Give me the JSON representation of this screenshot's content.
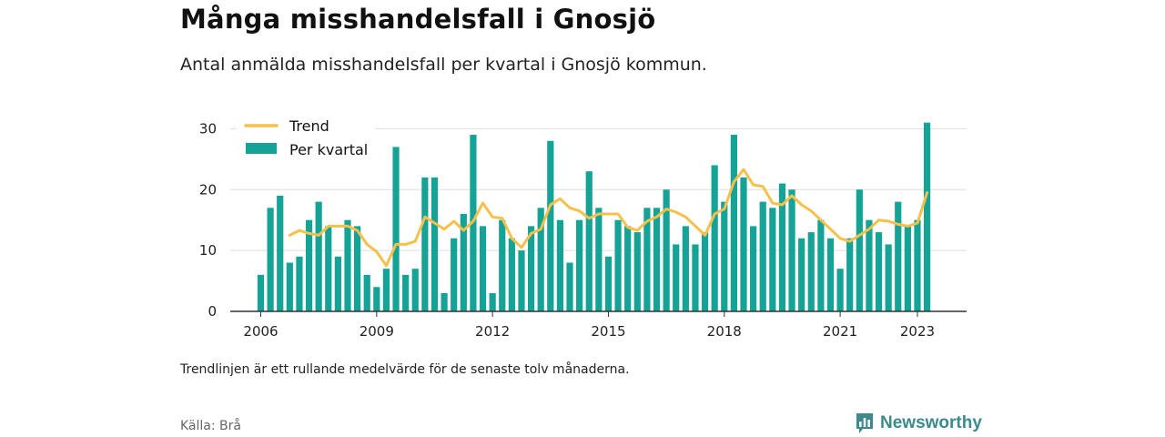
{
  "title": "Många misshandelsfall i Gnosjö",
  "subtitle": "Antal anmälda misshandelsfall per kvartal i Gnosjö kommun.",
  "note": "Trendlinjen är ett rullande medelvärde för de senaste tolv månaderna.",
  "source": "Källa: Brå",
  "brand": {
    "name": "Newsworthy",
    "icon": "newsworthy-logo-icon"
  },
  "colors": {
    "bars": "#14a396",
    "trend": "#f7c04a",
    "grid": "#dddddd",
    "axis": "#333333"
  },
  "chart_data": {
    "type": "bar",
    "title": "Många misshandelsfall i Gnosjö",
    "xlabel": "",
    "ylabel": "",
    "ylim": [
      0,
      32
    ],
    "yticks": [
      0,
      10,
      20,
      30
    ],
    "xticks": [
      "2006",
      "2009",
      "2012",
      "2015",
      "2018",
      "2021",
      "2023"
    ],
    "grid": true,
    "legend_position": "top-left",
    "categories": [
      "2006 Q1",
      "2006 Q2",
      "2006 Q3",
      "2006 Q4",
      "2007 Q1",
      "2007 Q2",
      "2007 Q3",
      "2007 Q4",
      "2008 Q1",
      "2008 Q2",
      "2008 Q3",
      "2008 Q4",
      "2009 Q1",
      "2009 Q2",
      "2009 Q3",
      "2009 Q4",
      "2010 Q1",
      "2010 Q2",
      "2010 Q3",
      "2010 Q4",
      "2011 Q1",
      "2011 Q2",
      "2011 Q3",
      "2011 Q4",
      "2012 Q1",
      "2012 Q2",
      "2012 Q3",
      "2012 Q4",
      "2013 Q1",
      "2013 Q2",
      "2013 Q3",
      "2013 Q4",
      "2014 Q1",
      "2014 Q2",
      "2014 Q3",
      "2014 Q4",
      "2015 Q1",
      "2015 Q2",
      "2015 Q3",
      "2015 Q4",
      "2016 Q1",
      "2016 Q2",
      "2016 Q3",
      "2016 Q4",
      "2017 Q1",
      "2017 Q2",
      "2017 Q3",
      "2017 Q4",
      "2018 Q1",
      "2018 Q2",
      "2018 Q3",
      "2018 Q4",
      "2019 Q1",
      "2019 Q2",
      "2019 Q3",
      "2019 Q4",
      "2020 Q1",
      "2020 Q2",
      "2020 Q3",
      "2020 Q4",
      "2021 Q1",
      "2021 Q2",
      "2021 Q3",
      "2021 Q4",
      "2022 Q1",
      "2022 Q2",
      "2022 Q3",
      "2022 Q4",
      "2023 Q1",
      "2023 Q2"
    ],
    "series": [
      {
        "name": "Per kvartal",
        "type": "bar",
        "values": [
          6,
          17,
          19,
          8,
          9,
          15,
          18,
          14,
          9,
          15,
          14,
          6,
          4,
          7,
          27,
          6,
          7,
          22,
          22,
          3,
          12,
          16,
          29,
          14,
          3,
          15,
          12,
          10,
          14,
          17,
          28,
          15,
          8,
          15,
          23,
          17,
          9,
          15,
          14,
          13,
          17,
          17,
          20,
          11,
          14,
          11,
          13,
          24,
          18,
          29,
          22,
          14,
          18,
          17,
          21,
          20,
          12,
          13,
          15,
          12,
          7,
          12,
          20,
          15,
          13,
          11,
          18,
          14,
          15,
          31
        ]
      },
      {
        "name": "Trend",
        "type": "line",
        "values": [
          null,
          null,
          null,
          12.5,
          13.3,
          12.8,
          12.5,
          14.0,
          14.0,
          14.0,
          13.3,
          11.0,
          9.8,
          7.5,
          11.0,
          11.0,
          11.5,
          15.5,
          14.5,
          13.5,
          14.8,
          13.3,
          14.8,
          17.8,
          15.5,
          15.3,
          12.0,
          10.5,
          12.8,
          13.5,
          17.5,
          18.5,
          17.0,
          16.5,
          15.3,
          16.0,
          16.0,
          16.0,
          13.8,
          13.3,
          14.8,
          15.5,
          16.8,
          16.3,
          15.5,
          14.0,
          12.5,
          16.0,
          16.8,
          21.3,
          23.3,
          20.8,
          20.5,
          17.8,
          17.5,
          19.0,
          17.5,
          16.5,
          15.0,
          13.5,
          12.0,
          11.5,
          12.5,
          13.5,
          15.0,
          14.8,
          14.3,
          14.0,
          14.5,
          19.5
        ]
      }
    ]
  }
}
